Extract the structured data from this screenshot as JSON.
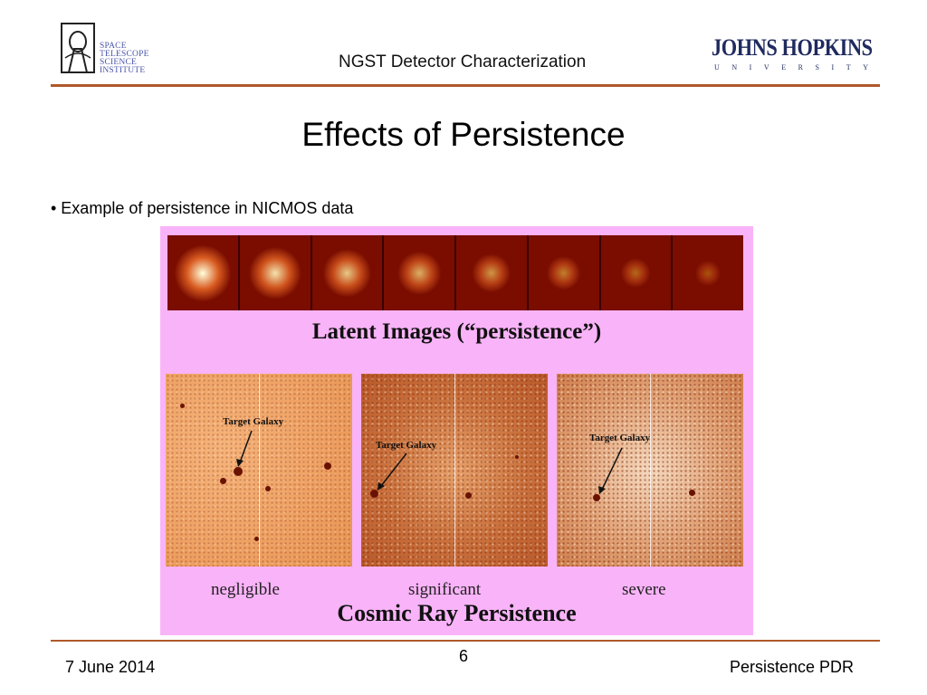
{
  "header": {
    "logo_left_lines": [
      "SPACE",
      "TELESCOPE",
      "SCIENCE",
      "INSTITUTE"
    ],
    "title": "NGST Detector Characterization",
    "logo_right_name": "JOHNS HOPKINS",
    "logo_right_sub": [
      "U",
      "N",
      "I",
      "V",
      "E",
      "R",
      "S",
      "I",
      "T",
      "Y"
    ]
  },
  "slide": {
    "title": "Effects of Persistence",
    "bullet": "• Example of persistence in NICMOS data"
  },
  "figure": {
    "latent_caption": "Latent Images (“persistence”)",
    "frame_count": 8,
    "panel_annotation": "Target Galaxy",
    "levels": [
      "negligible",
      "significant",
      "severe"
    ],
    "cr_caption": "Cosmic Ray Persistence",
    "colors": {
      "background": "#f9b3f8",
      "strip": "#7a0d00"
    }
  },
  "footer": {
    "date": "7 June 2014",
    "page": "6",
    "right": "Persistence PDR"
  }
}
